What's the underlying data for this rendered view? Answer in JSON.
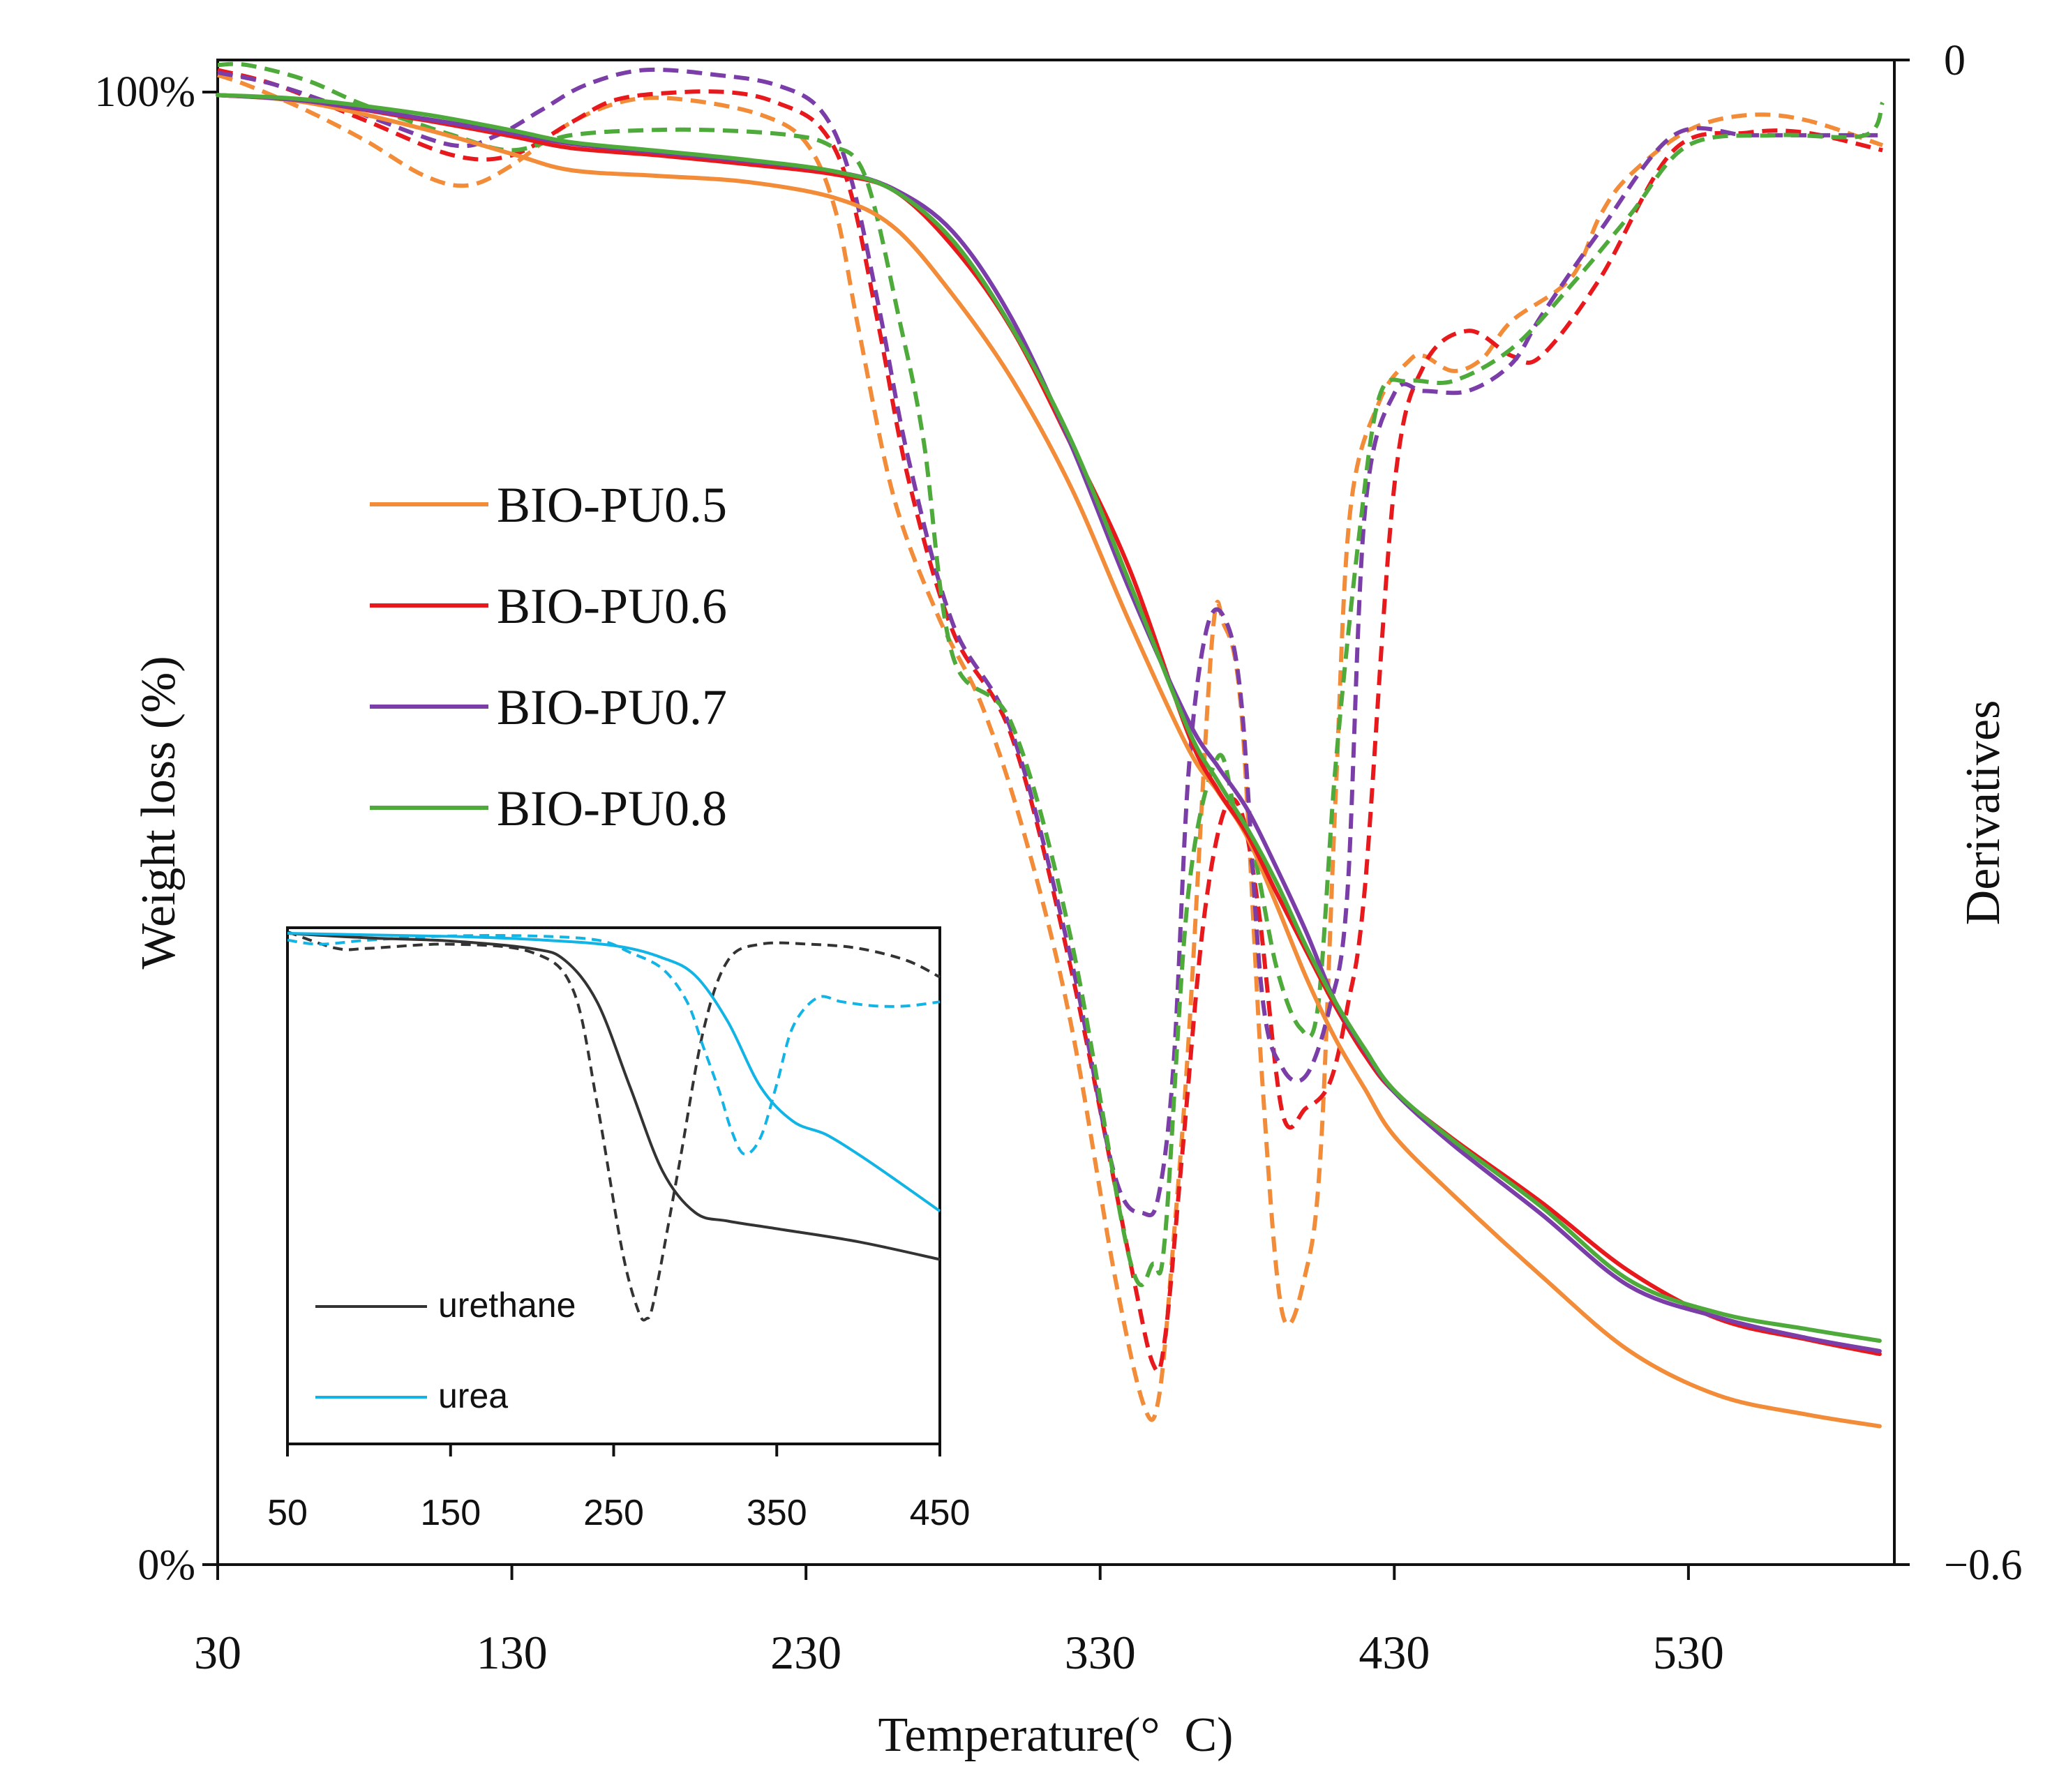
{
  "chart_data": {
    "type": "line",
    "main": {
      "xlabel": "Temperature(° C)",
      "ylabel_left": "Weight loss (%)",
      "ylabel_right": "Derivatives",
      "x_range": [
        30,
        600
      ],
      "x_ticks": [
        30,
        130,
        230,
        330,
        430,
        530
      ],
      "y_left_range": [
        0,
        100
      ],
      "y_left_ticks": [
        {
          "value": 100,
          "label": "100%"
        },
        {
          "value": 0,
          "label": "0%"
        }
      ],
      "y_right_range": [
        -0.6,
        0
      ],
      "y_right_ticks": [
        {
          "value": 0,
          "label": "0"
        },
        {
          "value": -0.6,
          "label": "−0.6"
        }
      ],
      "legend_position": "left-middle",
      "series": [
        {
          "name": "BIO-PU0.5",
          "color": "#f28c38",
          "weight_loss": {
            "x": [
              30,
              60,
              100,
              130,
              150,
              180,
              210,
              240,
              260,
              280,
              300,
              320,
              340,
              360,
              370,
              380,
              390,
              400,
              410,
              420,
              430,
              450,
              480,
              510,
              540,
              570,
              595
            ],
            "y": [
              99.8,
              99.3,
              97.5,
              95.8,
              94.7,
              94.3,
              93.9,
              92.8,
              90.8,
              86.2,
              80.5,
              73.2,
              64.0,
              55.4,
              52.5,
              49.4,
              44.8,
              39.9,
              35.7,
              32.3,
              29.1,
              25.1,
              19.6,
              14.5,
              11.5,
              10.2,
              9.4
            ]
          },
          "derivative": {
            "x": [
              30,
              40,
              60,
              80,
              100,
              115,
              130,
              150,
              170,
              190,
              215,
              230,
              240,
              248,
              260,
              275,
              290,
              305,
              320,
              335,
              345,
              350,
              355,
              360,
              368,
              372,
              378,
              385,
              392,
              400,
              405,
              410,
              415,
              425,
              435,
              440,
              450,
              460,
              470,
              490,
              500,
              510,
              530,
              550,
              570,
              596
            ],
            "y": [
              -0.006,
              -0.01,
              -0.02,
              -0.032,
              -0.046,
              -0.05,
              -0.042,
              -0.025,
              -0.016,
              -0.016,
              -0.022,
              -0.033,
              -0.06,
              -0.108,
              -0.175,
              -0.222,
              -0.258,
              -0.312,
              -0.384,
              -0.485,
              -0.537,
              -0.533,
              -0.47,
              -0.392,
              -0.232,
              -0.225,
              -0.26,
              -0.405,
              -0.5,
              -0.483,
              -0.435,
              -0.295,
              -0.18,
              -0.136,
              -0.12,
              -0.118,
              -0.124,
              -0.119,
              -0.104,
              -0.087,
              -0.062,
              -0.046,
              -0.028,
              -0.022,
              -0.024,
              -0.034
            ]
          }
        },
        {
          "name": "BIO-PU0.6",
          "color": "#e8191c",
          "weight_loss": {
            "x": [
              30,
              60,
              100,
              130,
              150,
              180,
              210,
              240,
              260,
              280,
              300,
              320,
              340,
              360,
              370,
              380,
              390,
              400,
              410,
              420,
              430,
              450,
              480,
              510,
              540,
              570,
              595
            ],
            "y": [
              99.8,
              99.4,
              98.1,
              97.0,
              96.2,
              95.7,
              95.1,
              94.4,
              93.3,
              89.5,
              83.9,
              76.1,
              67.6,
              56.4,
              52.6,
              49.6,
              45.6,
              41.7,
              37.9,
              34.6,
              32.1,
              28.9,
              24.6,
              19.9,
              16.7,
              15.3,
              14.3
            ]
          },
          "derivative": {
            "x": [
              30,
              50,
              80,
              110,
              130,
              150,
              165,
              185,
              205,
              220,
              235,
              245,
              255,
              265,
              280,
              300,
              320,
              340,
              348,
              352,
              358,
              365,
              372,
              378,
              384,
              392,
              400,
              408,
              414,
              420,
              430,
              440,
              455,
              470,
              480,
              500,
              525,
              550,
              570,
              596
            ],
            "y": [
              -0.004,
              -0.01,
              -0.024,
              -0.038,
              -0.038,
              -0.025,
              -0.016,
              -0.013,
              -0.013,
              -0.017,
              -0.027,
              -0.052,
              -0.108,
              -0.168,
              -0.228,
              -0.27,
              -0.362,
              -0.478,
              -0.52,
              -0.51,
              -0.435,
              -0.345,
              -0.3,
              -0.3,
              -0.34,
              -0.42,
              -0.418,
              -0.408,
              -0.378,
              -0.33,
              -0.17,
              -0.122,
              -0.108,
              -0.118,
              -0.118,
              -0.087,
              -0.036,
              -0.029,
              -0.029,
              -0.036
            ]
          }
        },
        {
          "name": "BIO-PU0.7",
          "color": "#7b3da8",
          "weight_loss": {
            "x": [
              30,
              60,
              100,
              130,
              150,
              180,
              210,
              240,
              260,
              280,
              300,
              320,
              340,
              360,
              370,
              380,
              390,
              400,
              410,
              420,
              430,
              450,
              480,
              510,
              540,
              570,
              595
            ],
            "y": [
              99.8,
              99.4,
              98.2,
              97.2,
              96.5,
              95.9,
              95.3,
              94.6,
              93.4,
              90.5,
              84.6,
              76.1,
              66.2,
              57.3,
              54.2,
              51.3,
              47.3,
              43.0,
              38.2,
              34.9,
              32.1,
              28.5,
              23.8,
              18.9,
              16.8,
              15.4,
              14.5
            ]
          },
          "derivative": {
            "x": [
              30,
              50,
              80,
              110,
              125,
              140,
              155,
              175,
              200,
              220,
              235,
              245,
              255,
              265,
              280,
              300,
              320,
              335,
              345,
              350,
              355,
              360,
              366,
              372,
              378,
              385,
              392,
              400,
              408,
              414,
              420,
              430,
              440,
              455,
              470,
              480,
              500,
              525,
              550,
              570,
              596
            ],
            "y": [
              -0.005,
              -0.01,
              -0.022,
              -0.034,
              -0.03,
              -0.02,
              -0.01,
              -0.004,
              -0.006,
              -0.01,
              -0.02,
              -0.046,
              -0.1,
              -0.16,
              -0.225,
              -0.268,
              -0.358,
              -0.445,
              -0.46,
              -0.452,
              -0.4,
              -0.285,
              -0.228,
              -0.222,
              -0.256,
              -0.372,
              -0.402,
              -0.405,
              -0.378,
              -0.333,
              -0.18,
              -0.133,
              -0.132,
              -0.132,
              -0.121,
              -0.102,
              -0.068,
              -0.03,
              -0.03,
              -0.03,
              -0.03
            ]
          }
        },
        {
          "name": "BIO-PU0.8",
          "color": "#4eaa3a",
          "weight_loss": {
            "x": [
              30,
              60,
              100,
              130,
              150,
              180,
              210,
              240,
              260,
              280,
              300,
              320,
              340,
              360,
              370,
              380,
              390,
              400,
              410,
              420,
              430,
              450,
              480,
              510,
              540,
              570,
              595
            ],
            "y": [
              99.8,
              99.5,
              98.5,
              97.4,
              96.6,
              96.0,
              95.4,
              94.6,
              93.3,
              89.9,
              84.0,
              76.4,
              66.7,
              56.7,
              53.2,
              50.0,
              46.3,
              42.0,
              38.2,
              35.0,
              32.2,
              28.8,
              24.3,
              19.3,
              17.1,
              16.0,
              15.2
            ]
          },
          "derivative": {
            "x": [
              30,
              40,
              60,
              80,
              110,
              130,
              150,
              175,
              200,
              225,
              238,
              250,
              262,
              270,
              280,
              300,
              320,
              340,
              348,
              352,
              360,
              370,
              376,
              382,
              390,
              398,
              404,
              410,
              418,
              425,
              435,
              450,
              470,
              490,
              510,
              530,
              560,
              590,
              596
            ],
            "y": [
              -0.002,
              -0.002,
              -0.008,
              -0.018,
              -0.03,
              -0.036,
              -0.03,
              -0.028,
              -0.028,
              -0.03,
              -0.034,
              -0.046,
              -0.105,
              -0.152,
              -0.238,
              -0.265,
              -0.35,
              -0.478,
              -0.48,
              -0.47,
              -0.332,
              -0.278,
              -0.3,
              -0.315,
              -0.362,
              -0.386,
              -0.378,
              -0.282,
              -0.19,
              -0.134,
              -0.128,
              -0.128,
              -0.115,
              -0.09,
              -0.062,
              -0.034,
              -0.03,
              -0.03,
              -0.017
            ]
          }
        }
      ]
    },
    "inset": {
      "x_range": [
        50,
        450
      ],
      "x_ticks": [
        50,
        150,
        250,
        350,
        450
      ],
      "series": [
        {
          "name": "urethane",
          "color": "#333333",
          "weight_loss": {
            "x": [
              50,
              100,
              150,
              200,
              220,
              240,
              260,
              280,
              300,
              320,
              350,
              400,
              450
            ],
            "y": [
              100,
              99.4,
              99.0,
              98.0,
              96.5,
              91.0,
              80.0,
              69.0,
              63.6,
              62.5,
              61.5,
              59.8,
              57.5
            ]
          },
          "derivative": {
            "x": [
              50,
              80,
              100,
              150,
              200,
              225,
              240,
              255,
              265,
              270,
              275,
              290,
              305,
              320,
              340,
              370,
              400,
              430,
              450
            ],
            "y": [
              -0.01,
              -0.05,
              -0.05,
              -0.04,
              -0.06,
              -0.15,
              -0.43,
              -0.78,
              -0.93,
              -0.95,
              -0.9,
              -0.58,
              -0.25,
              -0.08,
              -0.04,
              -0.04,
              -0.05,
              -0.08,
              -0.12
            ]
          }
        },
        {
          "name": "urea",
          "color": "#11b4e5",
          "weight_loss": {
            "x": [
              50,
              100,
              150,
              200,
              250,
              280,
              300,
              320,
              340,
              360,
              380,
              400,
              420,
              450
            ],
            "y": [
              100,
              99.8,
              99.6,
              99.2,
              98.4,
              96.8,
              94.5,
              88.5,
              80.0,
              75.5,
              73.8,
              71.2,
              68.3,
              63.8
            ]
          },
          "derivative": {
            "x": [
              50,
              70,
              100,
              150,
              200,
              240,
              260,
              280,
              295,
              305,
              315,
              322,
              330,
              340,
              350,
              360,
              375,
              390,
              410,
              430,
              450
            ],
            "y": [
              -0.03,
              -0.04,
              -0.03,
              -0.02,
              -0.02,
              -0.03,
              -0.06,
              -0.1,
              -0.18,
              -0.29,
              -0.4,
              -0.49,
              -0.55,
              -0.51,
              -0.38,
              -0.24,
              -0.17,
              -0.18,
              -0.19,
              -0.19,
              -0.18
            ]
          }
        }
      ]
    }
  }
}
